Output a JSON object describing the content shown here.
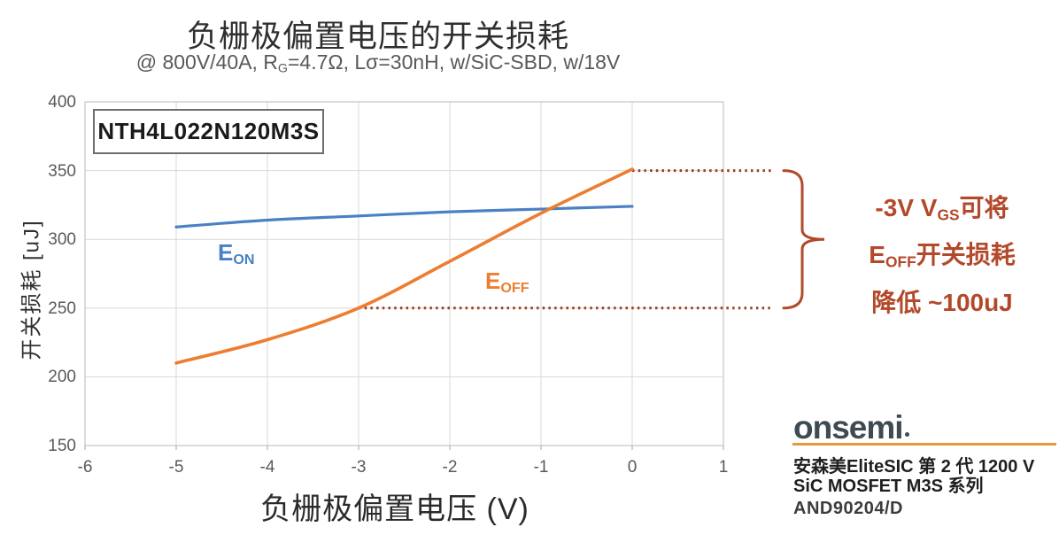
{
  "page": {
    "background": "#ffffff"
  },
  "header": {
    "title": "负栅极偏置电压的开关损耗",
    "subtitle_pre": "@ 800V/40A, R",
    "subtitle_sub": "G",
    "subtitle_post": "=4.7Ω, Lσ=30nH, w/SiC-SBD, w/18V"
  },
  "device_label": "NTH4L022N120M3S",
  "chart_data": {
    "type": "line",
    "title": "负栅极偏置电压的开关损耗",
    "xlabel": "负栅极偏置电压 (V)",
    "ylabel": "开关损耗 [uJ]",
    "xlim": [
      -6,
      1
    ],
    "ylim": [
      150,
      400
    ],
    "x_ticks": [
      -6,
      -5,
      -4,
      -3,
      -2,
      -1,
      0,
      1
    ],
    "y_ticks": [
      150,
      200,
      250,
      300,
      350,
      400
    ],
    "grid": true,
    "legend_position": "inline-labels",
    "x": [
      -5,
      -4,
      -3,
      -2,
      -1,
      0
    ],
    "series": [
      {
        "name": "EON",
        "label_main": "E",
        "label_sub": "ON",
        "color": "#4A80C4",
        "values": [
          309,
          314,
          317,
          320,
          322,
          324
        ]
      },
      {
        "name": "EOFF",
        "label_main": "E",
        "label_sub": "OFF",
        "color": "#ED7D31",
        "values": [
          210,
          227,
          250,
          284,
          319,
          351
        ]
      }
    ],
    "reference_lines": [
      {
        "y": 350,
        "from_x": 0,
        "style": "dotted",
        "color": "#993F22"
      },
      {
        "y": 250,
        "from_x": -3,
        "style": "dotted",
        "color": "#993F22"
      }
    ],
    "brace_color": "#B04A2B"
  },
  "annotation": {
    "color": "#B3492B",
    "lines": [
      {
        "pre": "-3V V",
        "sub": "GS",
        "post": "可将"
      },
      {
        "pre": "E",
        "sub": "OFF",
        "post": "开关损耗"
      },
      {
        "pre": "降低 ~100uJ",
        "sub": "",
        "post": ""
      }
    ]
  },
  "footer": {
    "logo_text": "onsemi",
    "logo_color": "#3E4B52",
    "underline_color": "#E8993B",
    "line1": "安森美EliteSIC 第 2 代 1200 V",
    "line2": "SiC MOSFET M3S 系列",
    "doc_id": "AND90204/D"
  }
}
